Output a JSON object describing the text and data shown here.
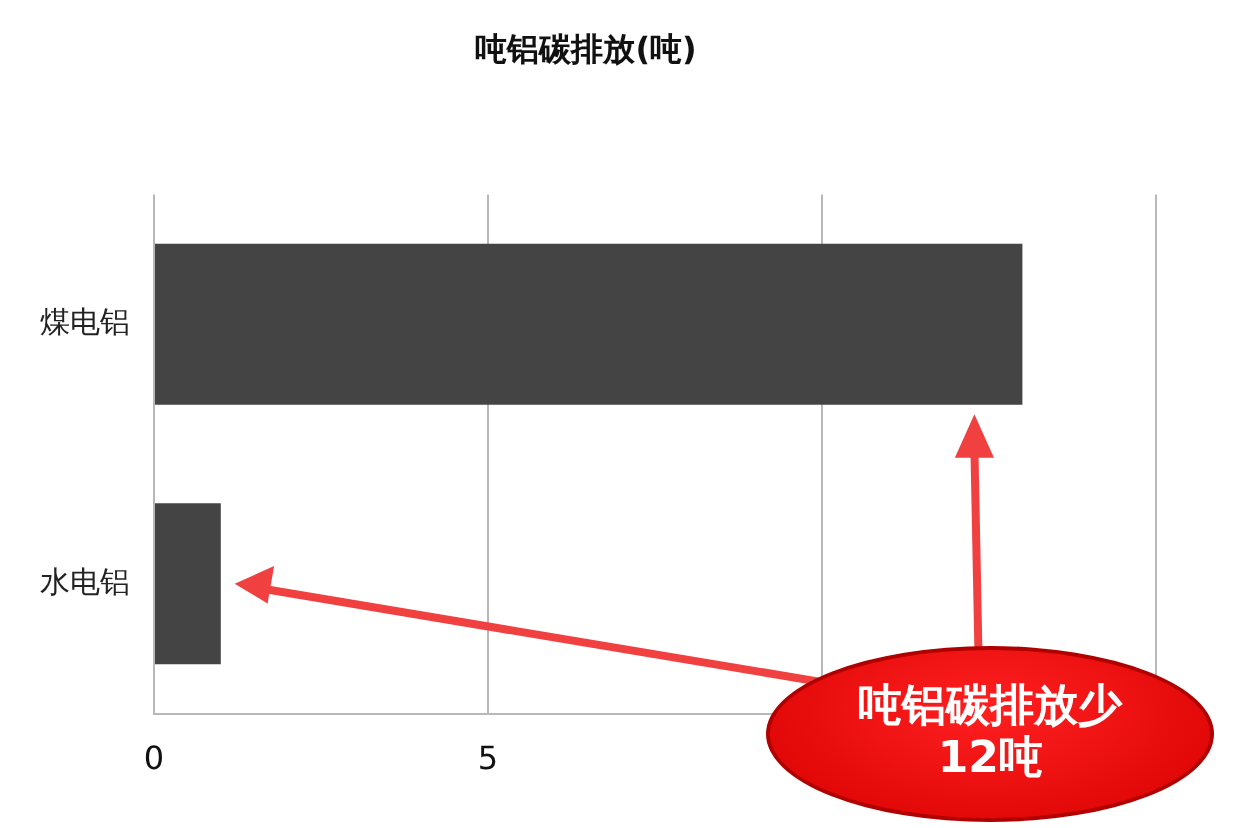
{
  "chart_data": {
    "type": "bar",
    "orientation": "horizontal",
    "title": "吨铝碳排放(吨)",
    "categories": [
      "煤电铝",
      "水电铝"
    ],
    "values": [
      13,
      1
    ],
    "color": "#444444",
    "xlim": [
      0,
      15
    ],
    "xticks": [
      0,
      5,
      {
        "value": 10,
        "label": null
      },
      {
        "value": 15,
        "label": null
      }
    ],
    "grid": "x",
    "legend": false,
    "annotations": [
      "吨铝碳排放少12吨"
    ]
  }
}
